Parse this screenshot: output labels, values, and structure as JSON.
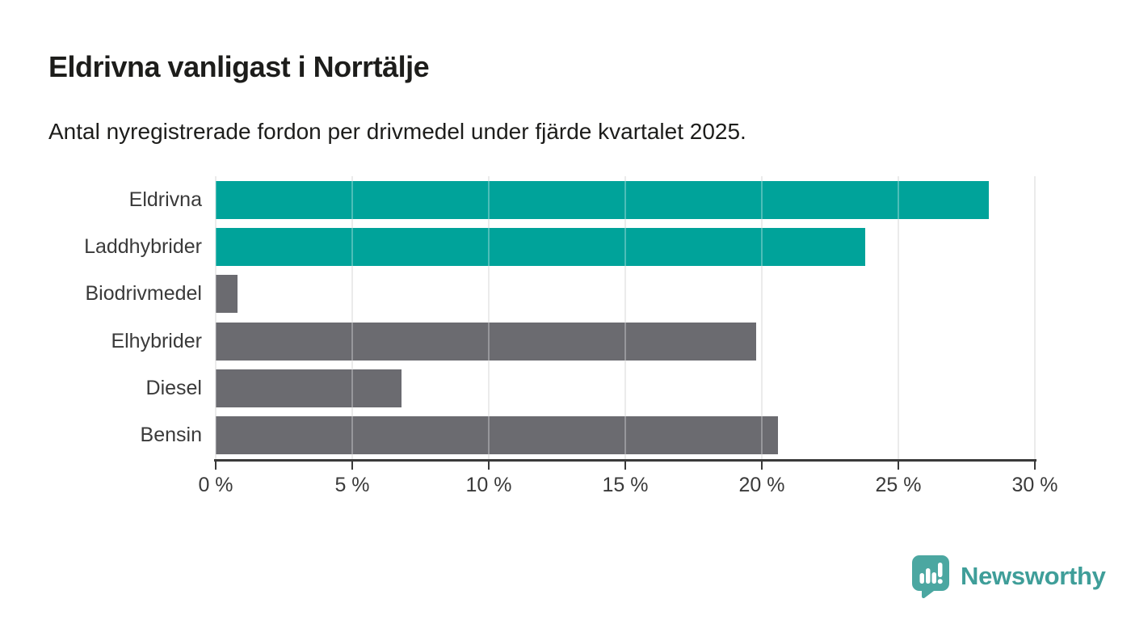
{
  "header": {
    "title": "Eldrivna vanligast i Norrtälje",
    "subtitle": "Antal nyregistrerade fordon per drivmedel under fjärde kvartalet 2025."
  },
  "chart_data": {
    "type": "bar",
    "orientation": "horizontal",
    "title": "Eldrivna vanligast i Norrtälje",
    "subtitle": "Antal nyregistrerade fordon per drivmedel under fjärde kvartalet 2025.",
    "categories": [
      "Eldrivna",
      "Laddhybrider",
      "Biodrivmedel",
      "Elhybrider",
      "Diesel",
      "Bensin"
    ],
    "values": [
      28.3,
      23.8,
      0.8,
      19.8,
      6.8,
      20.6
    ],
    "unit": "%",
    "bar_colors": [
      "#00a39a",
      "#00a39a",
      "#6b6b70",
      "#6b6b70",
      "#6b6b70",
      "#6b6b70"
    ],
    "highlight_color": "#00a39a",
    "default_color": "#6b6b70",
    "xlabel": "",
    "ylabel": "",
    "xlim": [
      0,
      30
    ],
    "x_ticks": [
      "0 %",
      "5 %",
      "10 %",
      "15 %",
      "20 %",
      "25 %",
      "30 %"
    ],
    "grid": "vertical-gridlines-on",
    "legend": "none",
    "gridline_color": "#e3e3e3",
    "axis_color": "#3a3a3a",
    "text_color": "#1d1d1b"
  },
  "footer": {
    "brand": "Newsworthy",
    "brand_color": "#3f9e99",
    "icon_color": "#4ba7a1",
    "icon_bar_color": "#ffffff",
    "icon_name": "newsworthy-speech-bubble-chart-icon"
  }
}
